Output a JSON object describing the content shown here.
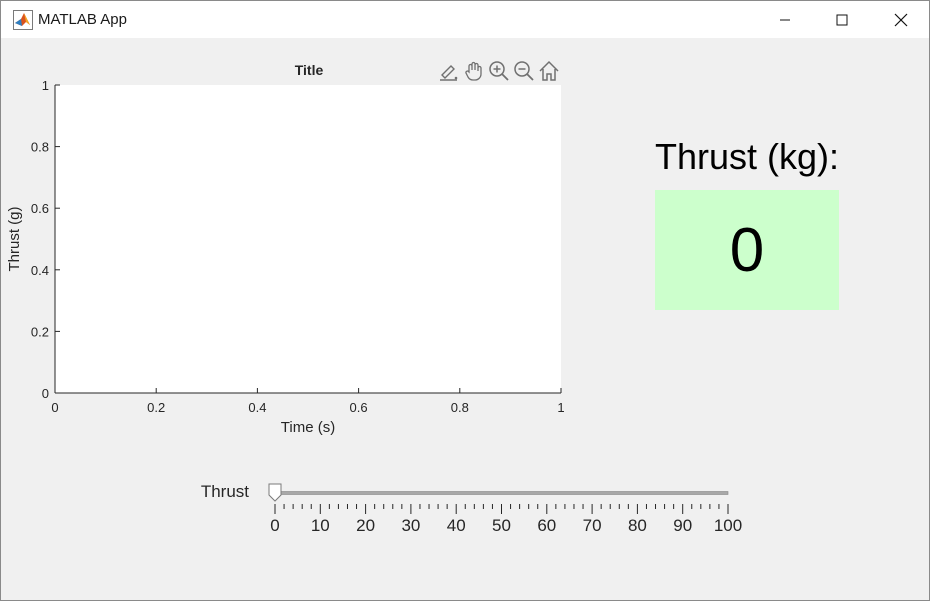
{
  "window": {
    "title": "MATLAB App",
    "controls": [
      "minimize",
      "maximize",
      "close"
    ]
  },
  "chart_data": {
    "type": "line",
    "title": "Title",
    "xlabel": "Time (s)",
    "ylabel": "Thrust (g)",
    "xlim": [
      0,
      1
    ],
    "ylim": [
      0,
      1
    ],
    "xticks": [
      "0",
      "0.2",
      "0.4",
      "0.6",
      "0.8",
      "1"
    ],
    "yticks": [
      "0",
      "0.2",
      "0.4",
      "0.6",
      "0.8",
      "1"
    ],
    "series": [],
    "grid": false
  },
  "axes_toolbar": {
    "icons": [
      "brush-icon",
      "pan-icon",
      "zoom-in-icon",
      "zoom-out-icon",
      "home-icon"
    ]
  },
  "readout": {
    "label": "Thrust (kg):",
    "value": "0",
    "background_color": "#ccffcc"
  },
  "slider": {
    "label": "Thrust",
    "min": 0,
    "max": 100,
    "value": 0,
    "major_ticks": [
      "0",
      "10",
      "20",
      "30",
      "40",
      "50",
      "60",
      "70",
      "80",
      "90",
      "100"
    ],
    "minor_per_major": 5
  },
  "colors": {
    "axis": "#262626",
    "plot_bg": "#ffffff",
    "window_bg": "#f0f0f0",
    "matlab_logo": "#d9531e"
  }
}
